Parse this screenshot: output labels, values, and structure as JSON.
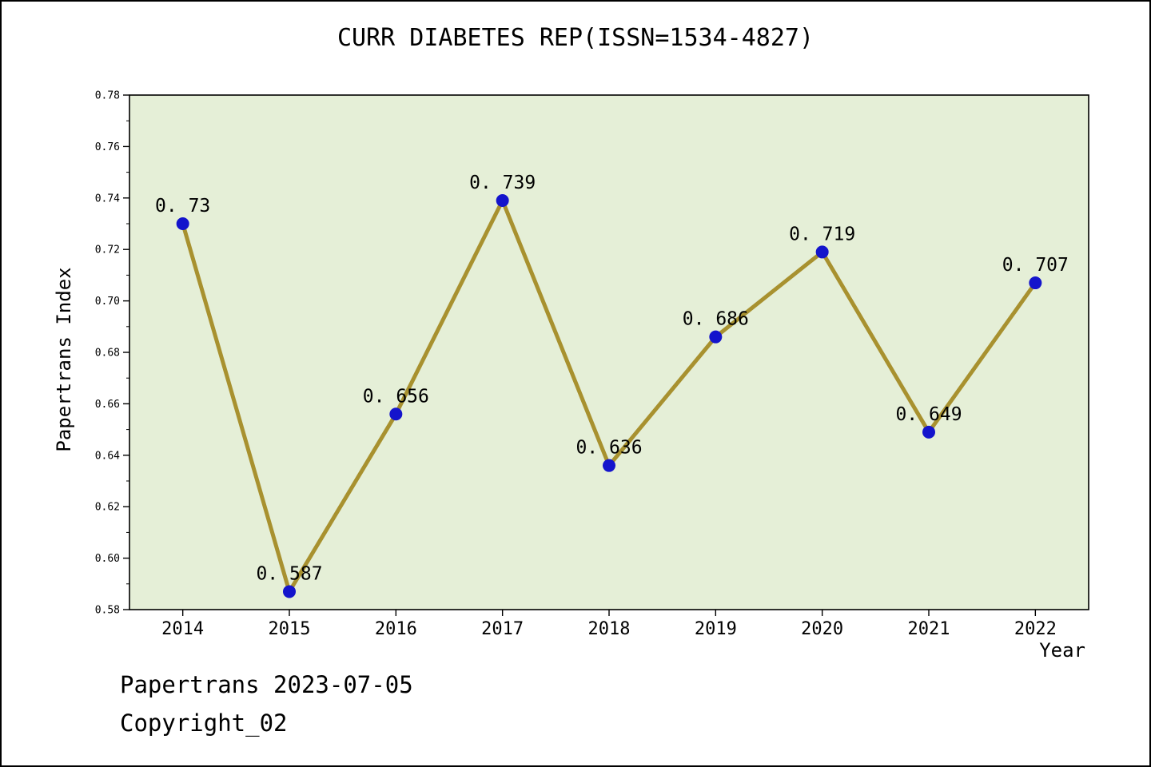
{
  "chart_data": {
    "type": "line",
    "title": "CURR DIABETES REP(ISSN=1534-4827)",
    "xlabel": "Year",
    "ylabel": "Papertrans Index",
    "categories": [
      2014,
      2015,
      2016,
      2017,
      2018,
      2019,
      2020,
      2021,
      2022
    ],
    "values": [
      0.73,
      0.587,
      0.656,
      0.739,
      0.636,
      0.686,
      0.719,
      0.649,
      0.707
    ],
    "point_labels": [
      "0. 73",
      "0. 587",
      "0. 656",
      "0. 739",
      "0. 636",
      "0. 686",
      "0. 719",
      "0. 649",
      "0. 707"
    ],
    "xlim": [
      2013.5,
      2022.5
    ],
    "ylim": [
      0.58,
      0.78
    ],
    "y_major_step": 0.02,
    "y_minor_step": 0.01,
    "grid": false,
    "legend": "none",
    "colors": {
      "line": "#a8912f",
      "marker": "#1414cc",
      "plot_bg": "#e5efd7",
      "axis": "#000000",
      "outer_bg": "#ffffff"
    }
  },
  "footer": {
    "line1": "Papertrans 2023-07-05",
    "line2": "Copyright_02"
  }
}
